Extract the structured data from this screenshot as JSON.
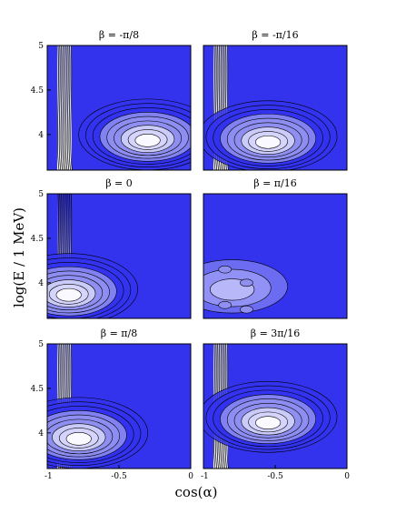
{
  "chart_data": {
    "type": "contour",
    "layout": "3x2 grid of contour plots",
    "xlabel": "cos(α)",
    "ylabel": "log(E / 1 MeV)",
    "xlim": [
      -1,
      0
    ],
    "ylim": [
      3.6,
      5
    ],
    "x_tick_labels": [
      "-1",
      "-0.5",
      "0"
    ],
    "x_tick_labels_right": [
      "-1",
      "-0.5",
      "0"
    ],
    "x_tick_values": [
      -1,
      -0.5,
      0
    ],
    "y_tick_labels": [
      "5",
      "4.5",
      "4"
    ],
    "y_tick_values": [
      5,
      4.5,
      4
    ],
    "colors": {
      "background": "#3333ee",
      "mid": "#8f8ff2",
      "light": "#d6d6fb",
      "peak": "#ffffff",
      "contour_line": "#000000"
    },
    "panels": [
      {
        "title": "β = -π/8",
        "row": 0,
        "col": 0,
        "hotspot": [
          -0.3,
          3.92
        ]
      },
      {
        "title": "β = -π/16",
        "row": 0,
        "col": 1,
        "hotspot": [
          -0.55,
          3.9
        ]
      },
      {
        "title": "β = 0",
        "row": 1,
        "col": 0,
        "hotspot": [
          -0.85,
          3.85
        ]
      },
      {
        "title": "β = π/16",
        "row": 1,
        "col": 1,
        "hotspot": [
          -0.8,
          3.9
        ]
      },
      {
        "title": "β = π/8",
        "row": 2,
        "col": 0,
        "hotspot": [
          -0.78,
          3.92
        ]
      },
      {
        "title": "β = 3π/16",
        "row": 2,
        "col": 1,
        "hotspot": [
          -0.55,
          4.1
        ]
      }
    ]
  }
}
